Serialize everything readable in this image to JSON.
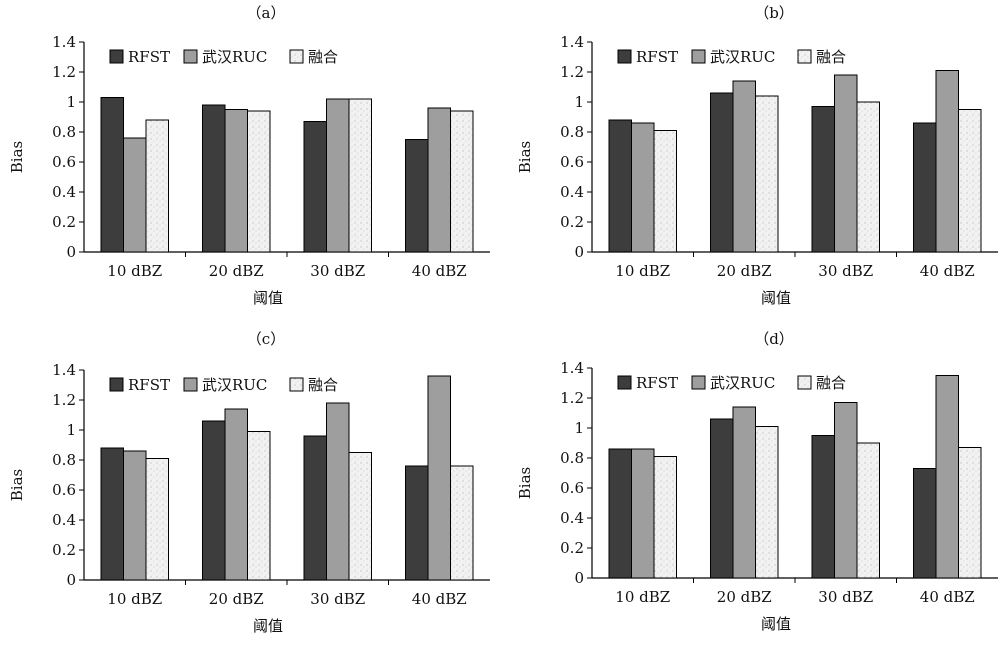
{
  "chart_data": [
    {
      "type": "bar",
      "panel_label": "（a）",
      "categories": [
        "10 dBZ",
        "20 dBZ",
        "30 dBZ",
        "40 dBZ"
      ],
      "series": [
        {
          "name": "RFST",
          "values": [
            1.03,
            0.98,
            0.87,
            0.75
          ]
        },
        {
          "name": "武汉RUC",
          "values": [
            0.76,
            0.95,
            1.02,
            0.96
          ]
        },
        {
          "name": "融合",
          "values": [
            0.88,
            0.94,
            1.02,
            0.94
          ]
        }
      ],
      "xlabel": "阈值",
      "ylabel": "Bias",
      "ylim": [
        0,
        1.4
      ],
      "yticks": [
        "0",
        "0.2",
        "0.4",
        "0.6",
        "0.8",
        "1",
        "1.2",
        "1.4"
      ],
      "legend": "top",
      "grid": false
    },
    {
      "type": "bar",
      "panel_label": "（b）",
      "categories": [
        "10 dBZ",
        "20 dBZ",
        "30 dBZ",
        "40 dBZ"
      ],
      "series": [
        {
          "name": "RFST",
          "values": [
            0.88,
            1.06,
            0.97,
            0.86
          ]
        },
        {
          "name": "武汉RUC",
          "values": [
            0.86,
            1.14,
            1.18,
            1.21
          ]
        },
        {
          "name": "融合",
          "values": [
            0.81,
            1.04,
            1.0,
            0.95
          ]
        }
      ],
      "xlabel": "阈值",
      "ylabel": "Bias",
      "ylim": [
        0,
        1.4
      ],
      "yticks": [
        "0",
        "0.2",
        "0.4",
        "0.6",
        "0.8",
        "1",
        "1.2",
        "1.4"
      ],
      "legend": "top",
      "grid": false
    },
    {
      "type": "bar",
      "panel_label": "（c）",
      "categories": [
        "10 dBZ",
        "20 dBZ",
        "30 dBZ",
        "40 dBZ"
      ],
      "series": [
        {
          "name": "RFST",
          "values": [
            0.88,
            1.06,
            0.96,
            0.76
          ]
        },
        {
          "name": "武汉RUC",
          "values": [
            0.86,
            1.14,
            1.18,
            1.36
          ]
        },
        {
          "name": "融合",
          "values": [
            0.81,
            0.99,
            0.85,
            0.76
          ]
        }
      ],
      "xlabel": "阈值",
      "ylabel": "Bias",
      "ylim": [
        0,
        1.4
      ],
      "yticks": [
        "0",
        "0.2",
        "0.4",
        "0.6",
        "0.8",
        "1",
        "1.2",
        "1.4"
      ],
      "legend": "top",
      "grid": false
    },
    {
      "type": "bar",
      "panel_label": "（d）",
      "categories": [
        "10 dBZ",
        "20 dBZ",
        "30 dBZ",
        "40 dBZ"
      ],
      "series": [
        {
          "name": "RFST",
          "values": [
            0.86,
            1.06,
            0.95,
            0.73
          ]
        },
        {
          "name": "武汉RUC",
          "values": [
            0.86,
            1.14,
            1.17,
            1.35
          ]
        },
        {
          "name": "融合",
          "values": [
            0.81,
            1.01,
            0.9,
            0.87
          ]
        }
      ],
      "xlabel": "阈值",
      "ylabel": "Bias",
      "ylim": [
        0,
        1.4
      ],
      "yticks": [
        "0",
        "0.2",
        "0.4",
        "0.6",
        "0.8",
        "1",
        "1.2",
        "1.4"
      ],
      "legend": "top",
      "grid": false
    }
  ],
  "colors": {
    "series": [
      "#3d3d3d",
      "#9e9e9e",
      "#efefef"
    ],
    "axis": "#000000",
    "text": "#111111"
  }
}
